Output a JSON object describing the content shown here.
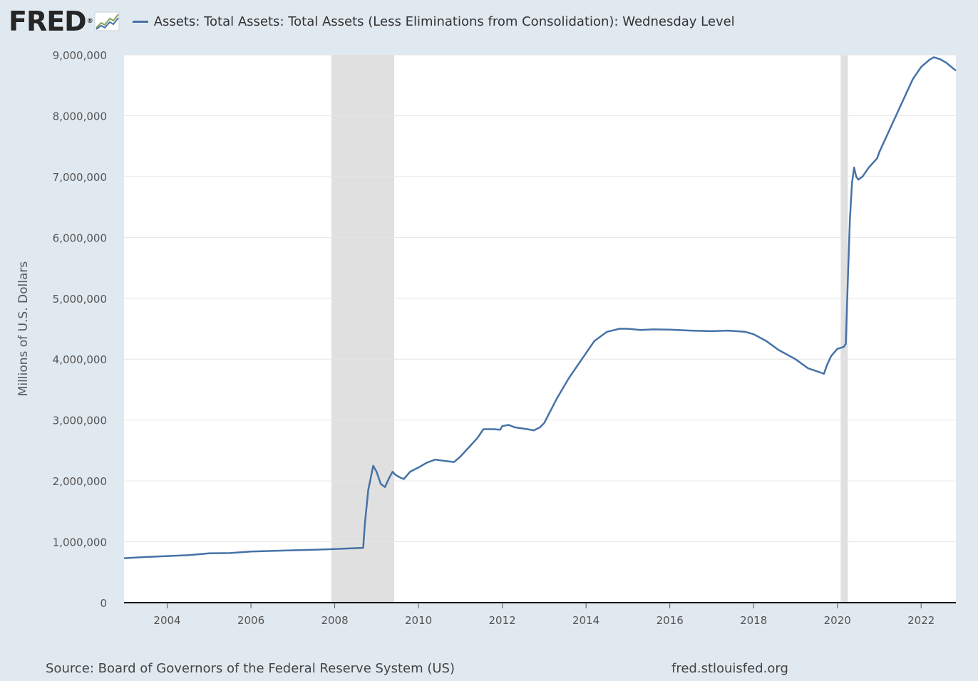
{
  "header": {
    "logo_text": "FRED",
    "logo_reg": "®",
    "logo_icon": "line-graph-icon",
    "legend_label": "Assets: Total Assets: Total Assets (Less Eliminations from Consolidation): Wednesday Level"
  },
  "colors": {
    "background": "#e1e9f0",
    "plot_background": "#ffffff",
    "series": "#4572a7",
    "recession": "#e0e0e0",
    "grid": "#e6e6e6"
  },
  "footer": {
    "source": "Source: Board of Governors of the Federal Reserve System (US)",
    "site": "fred.stlouisfed.org"
  },
  "chart_data": {
    "type": "line",
    "title": "Assets: Total Assets: Total Assets (Less Eliminations from Consolidation): Wednesday Level",
    "xlabel": "",
    "ylabel": "Millions of U.S. Dollars",
    "xlim": [
      2002.97,
      2022.83
    ],
    "ylim": [
      0,
      9000000
    ],
    "x_ticks": [
      2004,
      2006,
      2008,
      2010,
      2012,
      2014,
      2016,
      2018,
      2020,
      2022
    ],
    "x_tick_labels": [
      "2004",
      "2006",
      "2008",
      "2010",
      "2012",
      "2014",
      "2016",
      "2018",
      "2020",
      "2022"
    ],
    "y_ticks": [
      0,
      1000000,
      2000000,
      3000000,
      4000000,
      5000000,
      6000000,
      7000000,
      8000000,
      9000000
    ],
    "y_tick_labels": [
      "0",
      "1,000,000",
      "2,000,000",
      "3,000,000",
      "4,000,000",
      "5,000,000",
      "6,000,000",
      "7,000,000",
      "8,000,000",
      "9,000,000"
    ],
    "grid": true,
    "recessions": [
      {
        "start": 2007.92,
        "end": 2009.42
      },
      {
        "start": 2020.08,
        "end": 2020.25
      }
    ],
    "series": [
      {
        "name": "Assets: Total Assets: Total Assets (Less Eliminations from Consolidation): Wednesday Level",
        "x": [
          2002.97,
          2003.5,
          2004.0,
          2004.5,
          2005.0,
          2005.5,
          2006.0,
          2006.5,
          2007.0,
          2007.5,
          2008.0,
          2008.3,
          2008.5,
          2008.68,
          2008.72,
          2008.8,
          2008.92,
          2009.0,
          2009.1,
          2009.2,
          2009.3,
          2009.38,
          2009.45,
          2009.55,
          2009.65,
          2009.8,
          2010.0,
          2010.2,
          2010.4,
          2010.6,
          2010.85,
          2011.0,
          2011.2,
          2011.4,
          2011.55,
          2011.8,
          2011.95,
          2012.0,
          2012.15,
          2012.3,
          2012.6,
          2012.75,
          2012.9,
          2013.0,
          2013.3,
          2013.6,
          2013.9,
          2014.2,
          2014.5,
          2014.8,
          2015.0,
          2015.3,
          2015.6,
          2016.0,
          2016.5,
          2017.0,
          2017.4,
          2017.8,
          2018.0,
          2018.3,
          2018.6,
          2019.0,
          2019.3,
          2019.6,
          2019.68,
          2019.75,
          2019.85,
          2020.0,
          2020.15,
          2020.2,
          2020.25,
          2020.3,
          2020.35,
          2020.4,
          2020.45,
          2020.5,
          2020.6,
          2020.75,
          2020.95,
          2021.0,
          2021.2,
          2021.4,
          2021.6,
          2021.8,
          2022.0,
          2022.2,
          2022.3,
          2022.45,
          2022.6,
          2022.83
        ],
        "values": [
          730000,
          750000,
          765000,
          780000,
          810000,
          815000,
          840000,
          850000,
          860000,
          870000,
          880000,
          890000,
          895000,
          900000,
          1300000,
          1850000,
          2250000,
          2150000,
          1950000,
          1900000,
          2050000,
          2150000,
          2100000,
          2060000,
          2030000,
          2150000,
          2220000,
          2300000,
          2350000,
          2330000,
          2310000,
          2400000,
          2550000,
          2700000,
          2850000,
          2850000,
          2840000,
          2900000,
          2920000,
          2880000,
          2850000,
          2830000,
          2880000,
          2950000,
          3350000,
          3700000,
          4000000,
          4300000,
          4450000,
          4500000,
          4500000,
          4480000,
          4490000,
          4485000,
          4470000,
          4460000,
          4470000,
          4450000,
          4410000,
          4300000,
          4150000,
          4000000,
          3850000,
          3780000,
          3760000,
          3900000,
          4050000,
          4170000,
          4200000,
          4250000,
          5300000,
          6300000,
          6900000,
          7150000,
          7000000,
          6950000,
          7000000,
          7150000,
          7300000,
          7400000,
          7700000,
          8000000,
          8300000,
          8600000,
          8800000,
          8920000,
          8960000,
          8930000,
          8870000,
          8740000
        ]
      }
    ]
  }
}
